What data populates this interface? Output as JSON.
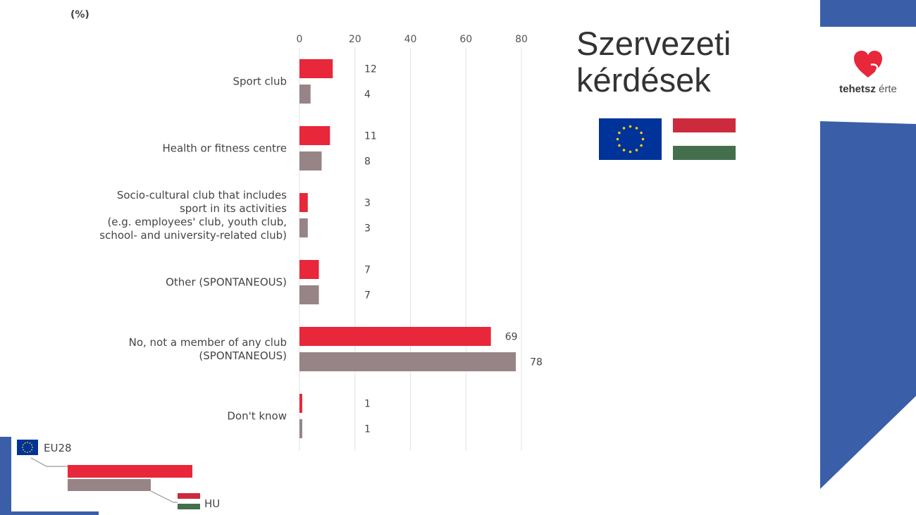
{
  "slide": {
    "title_line1": "Szervezeti",
    "title_line2": "kérdések",
    "logo": {
      "brand_bold": "tehetsz",
      "brand_thin": "érte",
      "icon": "heart-icon"
    },
    "flags": [
      "eu-flag-icon",
      "hungary-flag-icon"
    ]
  },
  "colors": {
    "accent_blue": "#3a5ea8",
    "eu_red": "#e8273a",
    "hu_gray": "#978486",
    "eu_flag_blue": "#003399",
    "eu_star_yellow": "#ffcc00",
    "hu_red": "#cd2a3e",
    "hu_green": "#436f4d"
  },
  "chart_data": {
    "type": "bar",
    "orientation": "horizontal",
    "unit_label": "(%)",
    "xlim": [
      0,
      80
    ],
    "xticks": [
      0,
      20,
      40,
      60,
      80
    ],
    "grid": true,
    "categories": [
      [
        "Sport club"
      ],
      [
        "Health or fitness centre"
      ],
      [
        "Socio-cultural club that includes",
        "sport in its activities",
        "(e.g. employees' club, youth club,",
        "school- and university-related club)"
      ],
      [
        "Other (SPONTANEOUS)"
      ],
      [
        "No, not a member of any club",
        "(SPONTANEOUS)"
      ],
      [
        "Don't know"
      ]
    ],
    "series": [
      {
        "name": "EU28",
        "color": "#e8273a",
        "values": [
          12,
          11,
          3,
          7,
          69,
          1
        ]
      },
      {
        "name": "HU",
        "color": "#978486",
        "values": [
          4,
          8,
          3,
          7,
          78,
          1
        ]
      }
    ],
    "legend_position": "bottom-left"
  }
}
